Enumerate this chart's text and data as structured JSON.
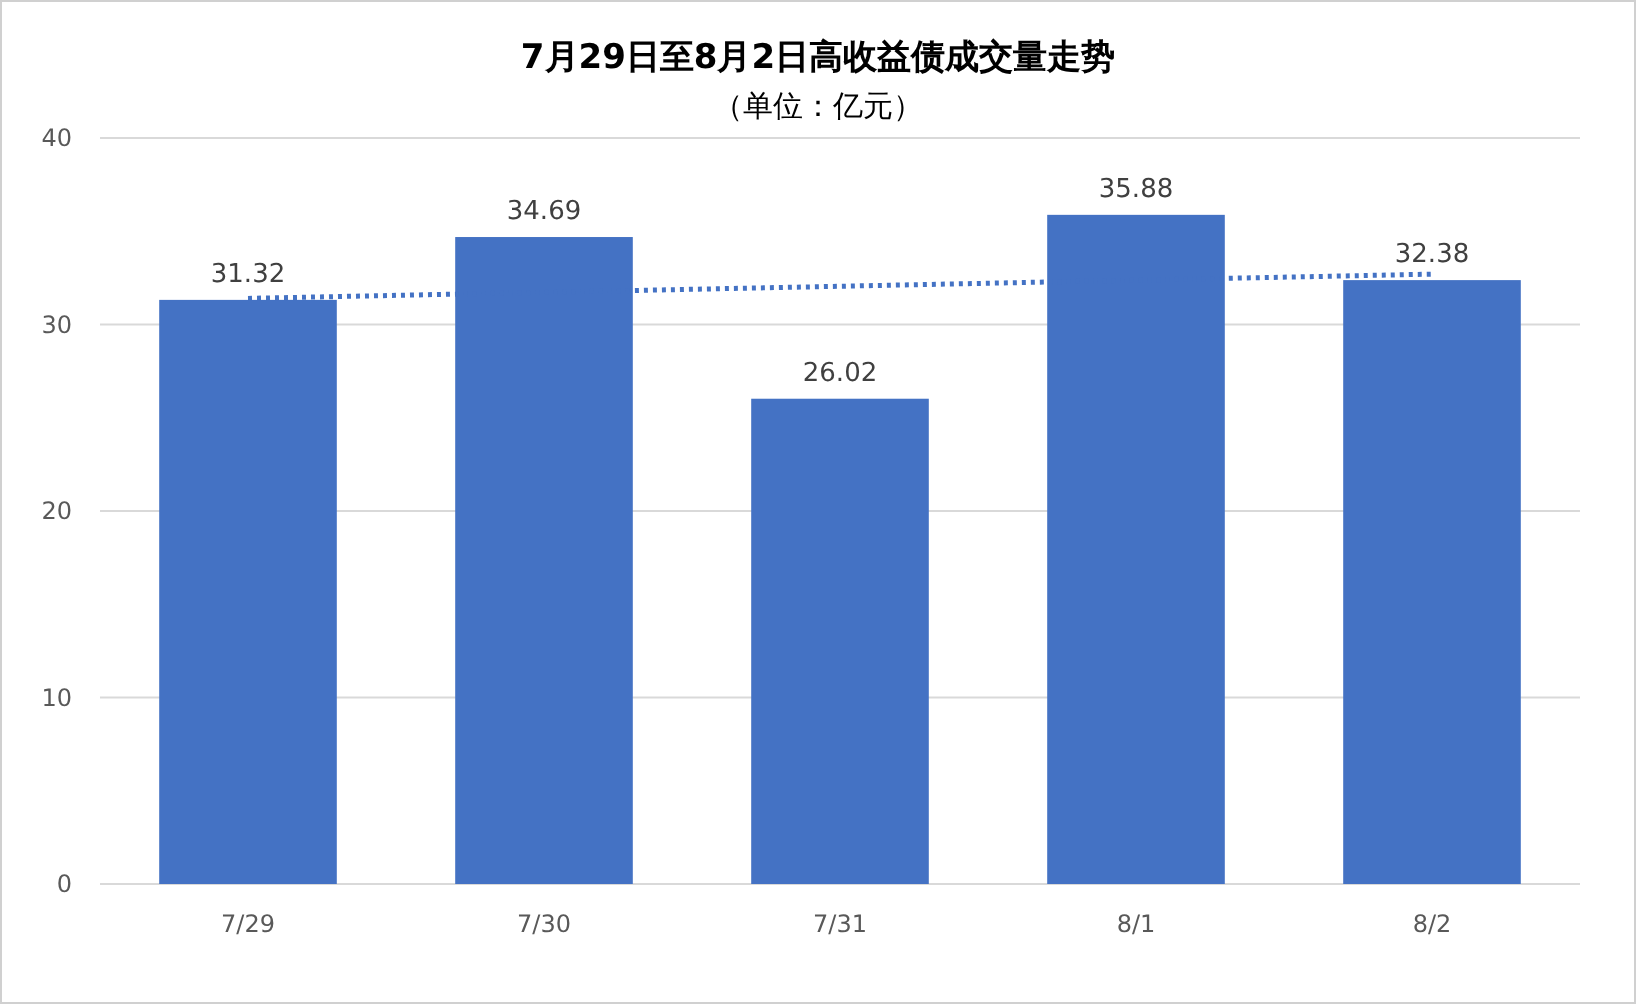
{
  "chart_data": {
    "type": "bar",
    "title": "7月29日至8月2日高收益债成交量走势",
    "subtitle": "（单位：亿元）",
    "categories": [
      "7/29",
      "7/30",
      "7/31",
      "8/1",
      "8/2"
    ],
    "series": [
      {
        "color": "#4472c4",
        "values": [
          31.32,
          34.69,
          26.02,
          35.88,
          32.38
        ],
        "value_labels": [
          "31.32",
          "34.69",
          "26.02",
          "35.88",
          "32.38"
        ]
      },
      {
        "type": "line",
        "color": "#4472c4",
        "line_style": "dotted",
        "x": [
          "7/29",
          "8/2"
        ],
        "values": [
          31.4,
          32.7
        ]
      }
    ],
    "ylim": [
      0,
      40
    ],
    "yticks": [
      0,
      10,
      20,
      30,
      40
    ],
    "grid": "y"
  }
}
